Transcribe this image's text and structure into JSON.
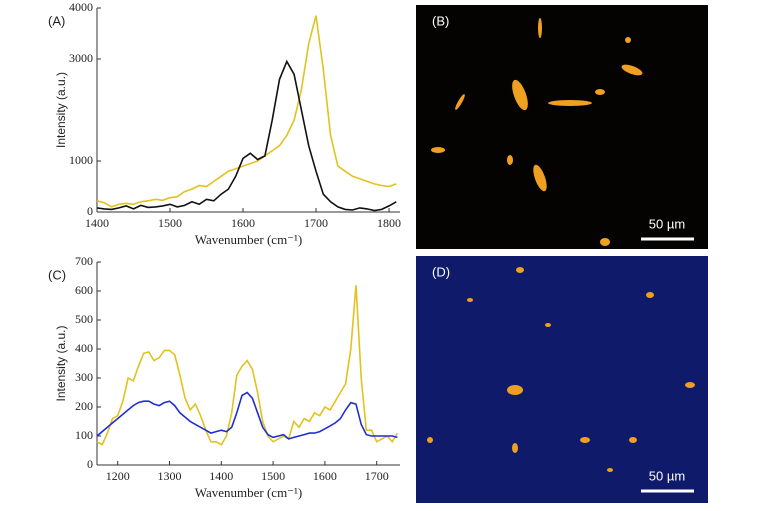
{
  "chart_data": [
    {
      "type": "line",
      "panel": "(A)",
      "xlabel": "Wavenumber (cm⁻¹)",
      "ylabel": "Intensity (a.u.)",
      "x": [
        1400,
        1410,
        1420,
        1430,
        1440,
        1450,
        1460,
        1470,
        1480,
        1490,
        1500,
        1510,
        1520,
        1530,
        1540,
        1550,
        1560,
        1570,
        1580,
        1590,
        1600,
        1610,
        1620,
        1630,
        1640,
        1650,
        1660,
        1670,
        1680,
        1690,
        1700,
        1710,
        1720,
        1730,
        1740,
        1750,
        1760,
        1770,
        1780,
        1790,
        1800,
        1810
      ],
      "series": [
        {
          "color": "#e2c21f",
          "values": [
            220,
            180,
            100,
            150,
            170,
            150,
            200,
            220,
            250,
            230,
            280,
            300,
            400,
            450,
            520,
            500,
            600,
            700,
            800,
            850,
            900,
            950,
            1000,
            1100,
            1200,
            1300,
            1500,
            1800,
            2400,
            3300,
            3850,
            2800,
            1500,
            900,
            800,
            700,
            650,
            600,
            550,
            520,
            500,
            550
          ]
        },
        {
          "color": "#111111",
          "values": [
            80,
            60,
            50,
            80,
            120,
            60,
            130,
            90,
            100,
            120,
            150,
            100,
            130,
            200,
            150,
            250,
            220,
            350,
            450,
            700,
            1050,
            1150,
            1030,
            1100,
            1800,
            2600,
            2950,
            2700,
            2000,
            1300,
            800,
            350,
            200,
            100,
            50,
            40,
            80,
            60,
            30,
            50,
            120,
            200
          ]
        }
      ],
      "xlim": [
        1400,
        1815
      ],
      "xticks": [
        1400,
        1500,
        1600,
        1700,
        1800
      ],
      "ylim": [
        0,
        4000
      ],
      "yticks": [
        0,
        1000,
        3000,
        4000
      ]
    },
    {
      "type": "line",
      "panel": "(C)",
      "xlabel": "Wavenumber (cm⁻¹)",
      "ylabel": "Intensity (a.u.)",
      "x": [
        1160,
        1170,
        1180,
        1190,
        1200,
        1210,
        1220,
        1230,
        1240,
        1250,
        1260,
        1270,
        1280,
        1290,
        1300,
        1310,
        1320,
        1330,
        1340,
        1350,
        1360,
        1370,
        1380,
        1390,
        1400,
        1410,
        1420,
        1430,
        1440,
        1450,
        1460,
        1470,
        1480,
        1490,
        1500,
        1510,
        1520,
        1530,
        1540,
        1550,
        1560,
        1570,
        1580,
        1590,
        1600,
        1610,
        1620,
        1630,
        1640,
        1650,
        1660,
        1670,
        1680,
        1690,
        1700,
        1710,
        1720,
        1730,
        1740
      ],
      "series": [
        {
          "color": "#e2c21f",
          "values": [
            80,
            70,
            110,
            160,
            170,
            220,
            300,
            290,
            340,
            385,
            390,
            360,
            370,
            395,
            395,
            380,
            310,
            230,
            190,
            210,
            170,
            120,
            80,
            80,
            70,
            100,
            180,
            310,
            340,
            360,
            330,
            250,
            150,
            100,
            80,
            90,
            100,
            90,
            150,
            130,
            160,
            150,
            180,
            170,
            200,
            190,
            220,
            250,
            280,
            400,
            620,
            300,
            120,
            120,
            80,
            90,
            100,
            80,
            110
          ]
        },
        {
          "color": "#1f2fd0",
          "values": [
            100,
            115,
            130,
            145,
            160,
            175,
            190,
            205,
            215,
            220,
            220,
            210,
            205,
            215,
            220,
            205,
            180,
            165,
            150,
            140,
            130,
            120,
            110,
            115,
            120,
            115,
            130,
            180,
            240,
            250,
            230,
            180,
            130,
            105,
            95,
            100,
            105,
            90,
            95,
            100,
            105,
            110,
            110,
            115,
            125,
            135,
            145,
            160,
            190,
            215,
            210,
            140,
            105,
            100,
            100,
            100,
            100,
            100,
            95
          ]
        }
      ],
      "xlim": [
        1160,
        1745
      ],
      "xticks": [
        1200,
        1300,
        1400,
        1500,
        1600,
        1700
      ],
      "ylim": [
        0,
        700
      ],
      "yticks": [
        0,
        100,
        200,
        300,
        400,
        500,
        600,
        700
      ]
    }
  ],
  "images": [
    {
      "panel": "(B)",
      "scale_bar": "50 µm"
    },
    {
      "panel": "(D)",
      "scale_bar": "50 µm"
    }
  ]
}
